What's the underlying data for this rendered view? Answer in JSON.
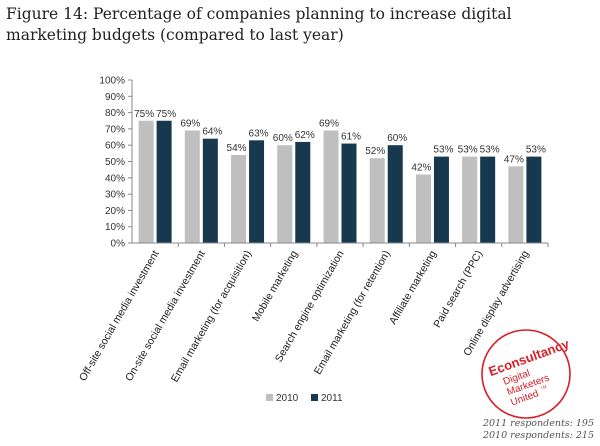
{
  "figure": {
    "title": "Figure 14: Percentage of companies planning to increase digital marketing budgets (compared to last year)"
  },
  "chart_data": {
    "type": "bar",
    "title": "Figure 14: Percentage of companies planning to increase digital marketing budgets (compared to last year)",
    "categories": [
      "Off-site social media investment",
      "On-site social media investment",
      "Email marketing (for acquisition)",
      "Mobile marketing",
      "Search engine optimization",
      "Email marketing (for retention)",
      "Affiliate marketing",
      "Paid search (PPC)",
      "Online display advertising"
    ],
    "series": [
      {
        "name": "2010",
        "values": [
          75,
          69,
          54,
          60,
          69,
          52,
          42,
          53,
          47
        ],
        "labels": [
          "75%",
          "69%",
          "54%",
          "60%",
          "69%",
          "52%",
          "42%",
          "53%",
          "47%"
        ]
      },
      {
        "name": "2011",
        "values": [
          75,
          64,
          63,
          62,
          61,
          60,
          53,
          53,
          53
        ],
        "labels": [
          "75%",
          "64%",
          "63%",
          "62%",
          "61%",
          "60%",
          "53%",
          "53%",
          "53%"
        ]
      }
    ],
    "ylim": [
      0,
      100
    ],
    "yticks": [
      "0%",
      "10%",
      "20%",
      "30%",
      "40%",
      "50%",
      "60%",
      "70%",
      "80%",
      "90%",
      "100%"
    ],
    "grid": false,
    "legend": "bottom",
    "colors": {
      "2010": "#bfbfbf",
      "2011": "#17394f"
    }
  },
  "logo": {
    "name": "Econsultancy",
    "tagline_lines": [
      "Digital",
      "Marketers",
      "United"
    ],
    "tm": "TM",
    "color": "#d71f26"
  },
  "notes": {
    "respondents_2011": "2011 respondents: 195",
    "respondents_2010": "2010 respondents: 215"
  }
}
